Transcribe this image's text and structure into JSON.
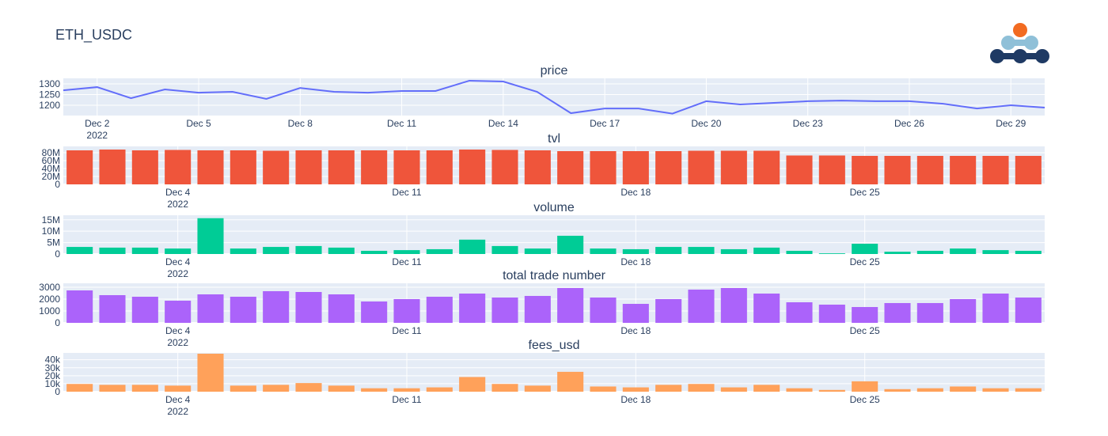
{
  "title": "ETH_USDC",
  "chart_data": [
    {
      "type": "line",
      "title": "price",
      "color": "#636efa",
      "x": [
        "2022-12-01",
        "2022-12-02",
        "2022-12-03",
        "2022-12-04",
        "2022-12-05",
        "2022-12-06",
        "2022-12-07",
        "2022-12-08",
        "2022-12-09",
        "2022-12-10",
        "2022-12-11",
        "2022-12-12",
        "2022-12-13",
        "2022-12-14",
        "2022-12-15",
        "2022-12-16",
        "2022-12-17",
        "2022-12-18",
        "2022-12-19",
        "2022-12-20",
        "2022-12-21",
        "2022-12-22",
        "2022-12-23",
        "2022-12-24",
        "2022-12-25",
        "2022-12-26",
        "2022-12-27",
        "2022-12-28",
        "2022-12-29",
        "2022-12-30"
      ],
      "values": [
        1270,
        1285,
        1233,
        1274,
        1259,
        1263,
        1230,
        1281,
        1263,
        1259,
        1267,
        1267,
        1315,
        1311,
        1263,
        1163,
        1185,
        1185,
        1161,
        1219,
        1204,
        1211,
        1219,
        1222,
        1219,
        1219,
        1207,
        1185,
        1200,
        1189
      ],
      "xlim": [
        "2022-12-01",
        "2022-12-30"
      ],
      "xticks": [
        {
          "value": "2022-12-02",
          "label": "Dec 2\n2022"
        },
        {
          "value": "2022-12-05",
          "label": "Dec 5"
        },
        {
          "value": "2022-12-08",
          "label": "Dec 8"
        },
        {
          "value": "2022-12-11",
          "label": "Dec 11"
        },
        {
          "value": "2022-12-14",
          "label": "Dec 14"
        },
        {
          "value": "2022-12-17",
          "label": "Dec 17"
        },
        {
          "value": "2022-12-20",
          "label": "Dec 20"
        },
        {
          "value": "2022-12-23",
          "label": "Dec 23"
        },
        {
          "value": "2022-12-26",
          "label": "Dec 26"
        },
        {
          "value": "2022-12-29",
          "label": "Dec 29"
        }
      ],
      "ylim": [
        1152,
        1326
      ],
      "yticks": [
        1200,
        1250,
        1300
      ],
      "grid": true
    },
    {
      "type": "bar",
      "title": "tvl",
      "color": "#ef553b",
      "x": [
        "2022-12-01",
        "2022-12-02",
        "2022-12-03",
        "2022-12-04",
        "2022-12-05",
        "2022-12-06",
        "2022-12-07",
        "2022-12-08",
        "2022-12-09",
        "2022-12-10",
        "2022-12-11",
        "2022-12-12",
        "2022-12-13",
        "2022-12-14",
        "2022-12-15",
        "2022-12-16",
        "2022-12-17",
        "2022-12-18",
        "2022-12-19",
        "2022-12-20",
        "2022-12-21",
        "2022-12-22",
        "2022-12-23",
        "2022-12-24",
        "2022-12-25",
        "2022-12-26",
        "2022-12-27",
        "2022-12-28",
        "2022-12-29",
        "2022-12-30"
      ],
      "values": [
        86000000,
        88000000,
        86000000,
        87000000,
        86000000,
        86000000,
        85000000,
        86000000,
        86000000,
        86000000,
        86000000,
        86000000,
        88000000,
        87000000,
        86000000,
        84000000,
        84000000,
        84000000,
        84000000,
        85000000,
        85000000,
        85000000,
        73000000,
        73000000,
        72000000,
        72000000,
        72000000,
        72000000,
        72000000,
        72000000
      ],
      "xlim": [
        "2022-11-30T12:00",
        "2022-12-30T12:00"
      ],
      "xticks": [
        {
          "value": "2022-12-04",
          "label": "Dec 4\n2022"
        },
        {
          "value": "2022-12-11",
          "label": "Dec 11"
        },
        {
          "value": "2022-12-18",
          "label": "Dec 18"
        },
        {
          "value": "2022-12-25",
          "label": "Dec 25"
        }
      ],
      "ylim": [
        0,
        96000000
      ],
      "yticks": [
        0,
        {
          "value": 20000000,
          "label": "20M"
        },
        {
          "value": 40000000,
          "label": "40M"
        },
        {
          "value": 60000000,
          "label": "60M"
        },
        {
          "value": 80000000,
          "label": "80M"
        }
      ],
      "grid": true
    },
    {
      "type": "bar",
      "title": "volume",
      "color": "#00cc96",
      "x": [
        "2022-12-01",
        "2022-12-02",
        "2022-12-03",
        "2022-12-04",
        "2022-12-05",
        "2022-12-06",
        "2022-12-07",
        "2022-12-08",
        "2022-12-09",
        "2022-12-10",
        "2022-12-11",
        "2022-12-12",
        "2022-12-13",
        "2022-12-14",
        "2022-12-15",
        "2022-12-16",
        "2022-12-17",
        "2022-12-18",
        "2022-12-19",
        "2022-12-20",
        "2022-12-21",
        "2022-12-22",
        "2022-12-23",
        "2022-12-24",
        "2022-12-25",
        "2022-12-26",
        "2022-12-27",
        "2022-12-28",
        "2022-12-29",
        "2022-12-30"
      ],
      "values": [
        3100000,
        2800000,
        2800000,
        2400000,
        15700000,
        2400000,
        3100000,
        3500000,
        2800000,
        1400000,
        1700000,
        2100000,
        6300000,
        3500000,
        2400000,
        8000000,
        2400000,
        2100000,
        3100000,
        3100000,
        2100000,
        2800000,
        1400000,
        300000,
        4500000,
        1000000,
        1400000,
        2400000,
        1700000,
        1400000
      ],
      "xlim": [
        "2022-11-30T12:00",
        "2022-12-30T12:00"
      ],
      "xticks": [
        {
          "value": "2022-12-04",
          "label": "Dec 4\n2022"
        },
        {
          "value": "2022-12-11",
          "label": "Dec 11"
        },
        {
          "value": "2022-12-18",
          "label": "Dec 18"
        },
        {
          "value": "2022-12-25",
          "label": "Dec 25"
        }
      ],
      "ylim": [
        0,
        17000000
      ],
      "yticks": [
        0,
        {
          "value": 5000000,
          "label": "5M"
        },
        {
          "value": 10000000,
          "label": "10M"
        },
        {
          "value": 15000000,
          "label": "15M"
        }
      ],
      "grid": true
    },
    {
      "type": "bar",
      "title": "total trade number",
      "color": "#ab63fa",
      "x": [
        "2022-12-01",
        "2022-12-02",
        "2022-12-03",
        "2022-12-04",
        "2022-12-05",
        "2022-12-06",
        "2022-12-07",
        "2022-12-08",
        "2022-12-09",
        "2022-12-10",
        "2022-12-11",
        "2022-12-12",
        "2022-12-13",
        "2022-12-14",
        "2022-12-15",
        "2022-12-16",
        "2022-12-17",
        "2022-12-18",
        "2022-12-19",
        "2022-12-20",
        "2022-12-21",
        "2022-12-22",
        "2022-12-23",
        "2022-12-24",
        "2022-12-25",
        "2022-12-26",
        "2022-12-27",
        "2022-12-28",
        "2022-12-29",
        "2022-12-30"
      ],
      "values": [
        2733,
        2333,
        2200,
        1867,
        2400,
        2200,
        2667,
        2600,
        2400,
        1800,
        2000,
        2200,
        2467,
        2133,
        2267,
        2933,
        2133,
        1600,
        2000,
        2800,
        2933,
        2467,
        1733,
        1533,
        1333,
        1667,
        1667,
        2000,
        2467,
        2133
      ],
      "xlim": [
        "2022-11-30T12:00",
        "2022-12-30T12:00"
      ],
      "xticks": [
        {
          "value": "2022-12-04",
          "label": "Dec 4\n2022"
        },
        {
          "value": "2022-12-11",
          "label": "Dec 11"
        },
        {
          "value": "2022-12-18",
          "label": "Dec 18"
        },
        {
          "value": "2022-12-25",
          "label": "Dec 25"
        }
      ],
      "ylim": [
        0,
        3333
      ],
      "yticks": [
        0,
        1000,
        2000,
        3000
      ],
      "grid": true
    },
    {
      "type": "bar",
      "title": "fees_usd",
      "color": "#ffa15a",
      "x": [
        "2022-12-01",
        "2022-12-02",
        "2022-12-03",
        "2022-12-04",
        "2022-12-05",
        "2022-12-06",
        "2022-12-07",
        "2022-12-08",
        "2022-12-09",
        "2022-12-10",
        "2022-12-11",
        "2022-12-12",
        "2022-12-13",
        "2022-12-14",
        "2022-12-15",
        "2022-12-16",
        "2022-12-17",
        "2022-12-18",
        "2022-12-19",
        "2022-12-20",
        "2022-12-21",
        "2022-12-22",
        "2022-12-23",
        "2022-12-24",
        "2022-12-25",
        "2022-12-26",
        "2022-12-27",
        "2022-12-28",
        "2022-12-29",
        "2022-12-30"
      ],
      "values": [
        9700,
        8600,
        8600,
        7600,
        47600,
        7600,
        8600,
        10800,
        7600,
        4300,
        4300,
        5400,
        18400,
        9700,
        7600,
        24900,
        6500,
        5400,
        8600,
        9700,
        5400,
        8600,
        4300,
        2200,
        13000,
        3200,
        4300,
        6500,
        4300,
        4300
      ],
      "xlim": [
        "2022-11-30T12:00",
        "2022-12-30T12:00"
      ],
      "xticks": [
        {
          "value": "2022-12-04",
          "label": "Dec 4\n2022"
        },
        {
          "value": "2022-12-11",
          "label": "Dec 11"
        },
        {
          "value": "2022-12-18",
          "label": "Dec 18"
        },
        {
          "value": "2022-12-25",
          "label": "Dec 25"
        }
      ],
      "ylim": [
        0,
        48600
      ],
      "yticks": [
        0,
        {
          "value": 10000,
          "label": "10k"
        },
        {
          "value": 20000,
          "label": "20k"
        },
        {
          "value": 30000,
          "label": "30k"
        },
        {
          "value": 40000,
          "label": "40k"
        }
      ],
      "grid": true
    }
  ]
}
